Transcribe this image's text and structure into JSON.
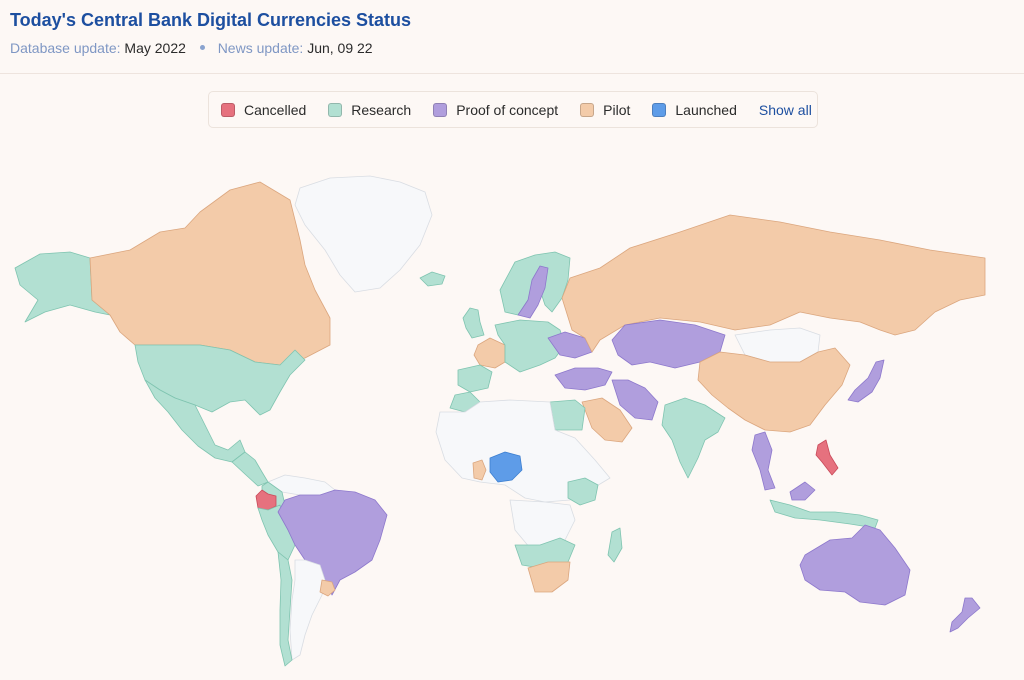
{
  "header": {
    "title": "Today's Central Bank Digital Currencies Status",
    "database_label": "Database update:",
    "database_value": "May 2022",
    "news_label": "News update:",
    "news_value": "Jun, 09 22"
  },
  "legend": {
    "items": [
      {
        "key": "cancelled",
        "label": "Cancelled",
        "color": "#e6717e"
      },
      {
        "key": "research",
        "label": "Research",
        "color": "#b2e0d2"
      },
      {
        "key": "proof",
        "label": "Proof of concept",
        "color": "#b09edd"
      },
      {
        "key": "pilot",
        "label": "Pilot",
        "color": "#f3cba9"
      },
      {
        "key": "launched",
        "label": "Launched",
        "color": "#5e9ce8"
      }
    ],
    "show_all": "Show all"
  },
  "map": {
    "no_data_color": "#f7f8fa",
    "countries": [
      {
        "name": "greenland",
        "status": "none"
      },
      {
        "name": "alaska",
        "status": "research"
      },
      {
        "name": "canada",
        "status": "pilot"
      },
      {
        "name": "usa",
        "status": "research"
      },
      {
        "name": "mexico",
        "status": "research"
      },
      {
        "name": "central-america",
        "status": "research"
      },
      {
        "name": "ecuador",
        "status": "cancelled"
      },
      {
        "name": "colombia",
        "status": "research"
      },
      {
        "name": "venezuela",
        "status": "none"
      },
      {
        "name": "brazil",
        "status": "proof"
      },
      {
        "name": "peru",
        "status": "research"
      },
      {
        "name": "chile",
        "status": "research"
      },
      {
        "name": "argentina",
        "status": "none"
      },
      {
        "name": "uruguay",
        "status": "pilot"
      },
      {
        "name": "iceland",
        "status": "research"
      },
      {
        "name": "uk",
        "status": "research"
      },
      {
        "name": "scandinavia",
        "status": "research"
      },
      {
        "name": "sweden",
        "status": "proof"
      },
      {
        "name": "france",
        "status": "pilot"
      },
      {
        "name": "spain",
        "status": "research"
      },
      {
        "name": "central-europe",
        "status": "research"
      },
      {
        "name": "ukraine",
        "status": "proof"
      },
      {
        "name": "russia",
        "status": "pilot"
      },
      {
        "name": "kazakhstan",
        "status": "proof"
      },
      {
        "name": "mongolia",
        "status": "none"
      },
      {
        "name": "china",
        "status": "pilot"
      },
      {
        "name": "turkey",
        "status": "proof"
      },
      {
        "name": "iran",
        "status": "proof"
      },
      {
        "name": "saudi-arabia",
        "status": "pilot"
      },
      {
        "name": "egypt",
        "status": "research"
      },
      {
        "name": "morocco",
        "status": "research"
      },
      {
        "name": "north-africa",
        "status": "none"
      },
      {
        "name": "nigeria",
        "status": "launched"
      },
      {
        "name": "ghana",
        "status": "pilot"
      },
      {
        "name": "central-africa",
        "status": "none"
      },
      {
        "name": "east-africa",
        "status": "research"
      },
      {
        "name": "south-africa",
        "status": "pilot"
      },
      {
        "name": "southern-africa",
        "status": "research"
      },
      {
        "name": "madagascar",
        "status": "research"
      },
      {
        "name": "india",
        "status": "research"
      },
      {
        "name": "thailand",
        "status": "proof"
      },
      {
        "name": "japan",
        "status": "proof"
      },
      {
        "name": "philippines",
        "status": "cancelled"
      },
      {
        "name": "indonesia",
        "status": "research"
      },
      {
        "name": "malaysia",
        "status": "proof"
      },
      {
        "name": "australia",
        "status": "proof"
      },
      {
        "name": "new-zealand",
        "status": "proof"
      }
    ]
  }
}
